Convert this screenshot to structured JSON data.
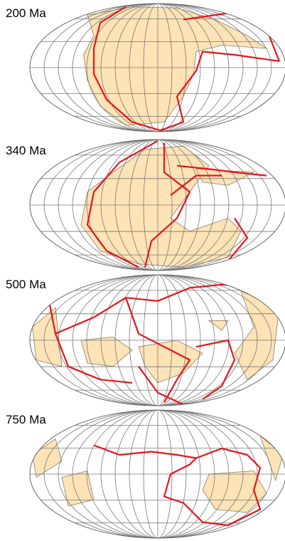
{
  "maps": [
    {
      "label": "200 Ma"
    },
    {
      "label": "340 Ma"
    },
    {
      "label": "500 Ma"
    },
    {
      "label": "750 Ma"
    }
  ]
}
